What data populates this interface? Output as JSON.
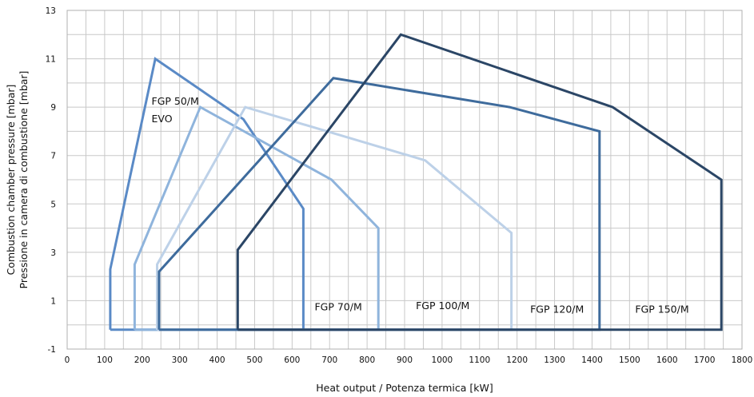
{
  "chart_data": {
    "type": "line",
    "title": "",
    "xlabel": "Heat output / Potenza termica [kW]",
    "ylabel_lines": [
      "Combustion chamber pressure [mbar]",
      "Pressione in camera di combustione [mbar]"
    ],
    "xlim": [
      0,
      1800
    ],
    "ylim": [
      -1,
      13
    ],
    "xticks": [
      "0",
      "100",
      "200",
      "300",
      "400",
      "500",
      "600",
      "700",
      "800",
      "900",
      "1000",
      "1100",
      "1200",
      "1300",
      "1400",
      "1500",
      "1600",
      "1700",
      "1800"
    ],
    "yticks": [
      "-1",
      "1",
      "3",
      "5",
      "7",
      "9",
      "11",
      "13"
    ],
    "grid": true,
    "series": [
      {
        "name": "FGP 50/M EVO",
        "color": "#5a8ac6",
        "x": [
          115,
          115,
          235,
          470,
          630,
          630,
          115
        ],
        "y": [
          -0.2,
          2.3,
          11.0,
          8.5,
          4.8,
          -0.2,
          -0.2
        ]
      },
      {
        "name": "FGP 70/M",
        "color": "#8fb4dc",
        "x": [
          180,
          180,
          355,
          705,
          830,
          830,
          180
        ],
        "y": [
          -0.2,
          2.5,
          9.0,
          6.0,
          4.0,
          -0.2,
          -0.2
        ]
      },
      {
        "name": "FGP 100/M",
        "color": "#bdd1e8",
        "x": [
          240,
          240,
          475,
          955,
          1185,
          1185,
          240
        ],
        "y": [
          -0.2,
          2.5,
          9.0,
          6.8,
          3.8,
          -0.2,
          -0.2
        ]
      },
      {
        "name": "FGP 120/M",
        "color": "#3e6b9c",
        "x": [
          245,
          245,
          710,
          1180,
          1420,
          1420,
          245
        ],
        "y": [
          -0.2,
          2.2,
          10.2,
          9.0,
          8.0,
          -0.2,
          -0.2
        ]
      },
      {
        "name": "FGP 150/M",
        "color": "#2b4666",
        "x": [
          455,
          455,
          890,
          1455,
          1745,
          1745,
          455
        ],
        "y": [
          -0.2,
          3.1,
          12.0,
          9.0,
          6.0,
          -0.2,
          -0.2
        ]
      }
    ],
    "annotations": [
      {
        "lines": [
          "FGP 50/M",
          "EVO"
        ],
        "x": 225,
        "y": 9.1
      },
      {
        "lines": [
          "FGP 70/M"
        ],
        "x": 660,
        "y": 0.6
      },
      {
        "lines": [
          "FGP 100/M"
        ],
        "x": 930,
        "y": 0.65
      },
      {
        "lines": [
          "FGP 120/M"
        ],
        "x": 1235,
        "y": 0.5
      },
      {
        "lines": [
          "FGP 150/M"
        ],
        "x": 1515,
        "y": 0.5
      }
    ]
  }
}
